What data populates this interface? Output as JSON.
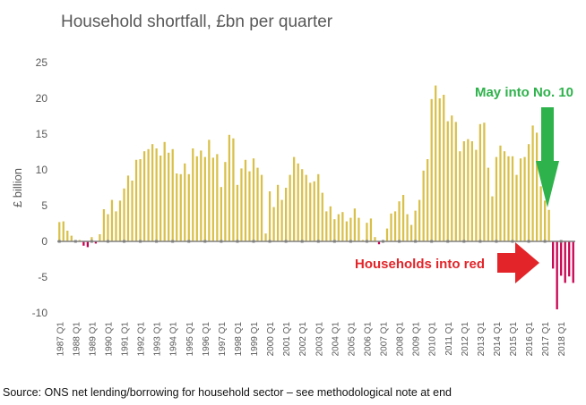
{
  "chart_data": {
    "type": "bar",
    "title": "Household shortfall, £bn per quarter",
    "ylabel": "£ billion",
    "xlabel": "",
    "ylim": [
      -10,
      25
    ],
    "yticks": [
      25,
      20,
      15,
      10,
      5,
      0,
      -5,
      -10
    ],
    "grid": false,
    "start_year": 1987,
    "x_tick_labels": [
      "1987 Q1",
      "1988 Q1",
      "1989 Q1",
      "1990 Q1",
      "1991 Q1",
      "1992 Q1",
      "1993 Q1",
      "1994 Q1",
      "1995 Q1",
      "1996 Q1",
      "1997 Q1",
      "1998 Q1",
      "1999 Q1",
      "2000 Q1",
      "2001 Q1",
      "2002 Q1",
      "2003 Q1",
      "2004 Q1",
      "2005 Q1",
      "2006 Q1",
      "2007 Q1",
      "2008 Q1",
      "2009 Q1",
      "2010 Q1",
      "2011 Q1",
      "2012 Q1",
      "2013 Q1",
      "2014 Q1",
      "2015 Q1",
      "2016 Q1",
      "2017 Q1",
      "2018 Q1"
    ],
    "series": [
      {
        "name": "Household shortfall",
        "values": [
          2.7,
          2.8,
          1.5,
          0.8,
          -0.1,
          0.2,
          -0.6,
          -0.8,
          0.6,
          -0.3,
          1.0,
          4.5,
          3.8,
          5.8,
          4.2,
          5.7,
          7.4,
          9.2,
          8.5,
          11.4,
          11.5,
          12.6,
          12.9,
          13.6,
          13.0,
          12.0,
          13.9,
          12.4,
          12.9,
          9.5,
          9.4,
          10.9,
          9.4,
          13.0,
          11.9,
          12.7,
          11.8,
          14.2,
          11.7,
          12.2,
          7.6,
          11.1,
          14.9,
          14.4,
          7.9,
          10.2,
          11.4,
          9.8,
          11.6,
          10.3,
          9.3,
          1.1,
          7.0,
          4.8,
          7.9,
          5.8,
          7.5,
          9.3,
          11.8,
          10.9,
          10.1,
          9.3,
          8.2,
          8.4,
          9.4,
          6.8,
          4.2,
          4.9,
          3.1,
          3.8,
          4.1,
          2.8,
          3.3,
          4.6,
          3.3,
          0.2,
          2.6,
          3.2,
          0.6,
          -0.4,
          0.2,
          1.8,
          3.9,
          4.2,
          5.6,
          6.5,
          3.8,
          2.3,
          4.3,
          5.8,
          9.9,
          11.5,
          19.9,
          21.8,
          20.0,
          20.5,
          16.8,
          17.6,
          16.7,
          12.6,
          14.0,
          14.3,
          14.0,
          12.8,
          16.4,
          16.6,
          10.3,
          6.3,
          11.8,
          13.4,
          12.6,
          11.9,
          11.9,
          9.3,
          11.6,
          11.8,
          13.6,
          16.2,
          15.2,
          7.7,
          5.7,
          4.4,
          -3.8,
          -9.5,
          -4.8,
          -5.8,
          -4.9,
          -5.8
        ]
      }
    ],
    "positive_color": "#d9c04a",
    "negative_color": "#c8004f",
    "axis_color": "#808080",
    "annotations": [
      {
        "text": "May into No. 10",
        "color": "#2eb24b",
        "arrow": "down"
      },
      {
        "text": "Households into red",
        "color": "#e3252a",
        "arrow": "right"
      }
    ]
  },
  "source_note": "Source: ONS net lending/borrowing for household sector – see methodological note at end"
}
